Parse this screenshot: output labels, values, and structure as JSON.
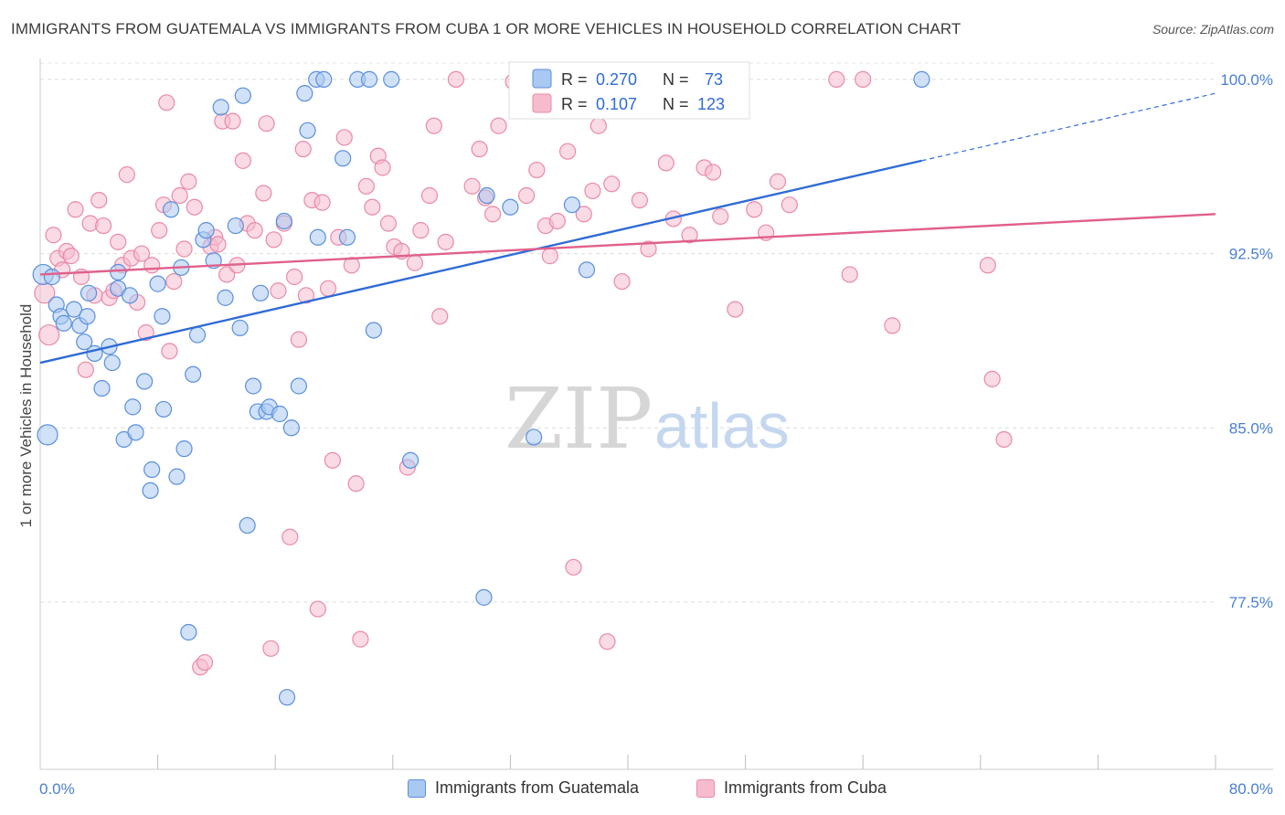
{
  "title": "IMMIGRANTS FROM GUATEMALA VS IMMIGRANTS FROM CUBA 1 OR MORE VEHICLES IN HOUSEHOLD CORRELATION CHART",
  "source": "Source: ZipAtlas.com",
  "watermark": {
    "zip": "ZIP",
    "atlas": "atlas"
  },
  "legend": {
    "r_label": "R =",
    "n_label": "N =",
    "guatemala": {
      "r": "0.270",
      "n": "73"
    },
    "cuba": {
      "r": "0.107",
      "n": "123"
    }
  },
  "bottom_legend": {
    "guatemala": "Immigrants from Guatemala",
    "cuba": "Immigrants from Cuba"
  },
  "colors": {
    "guatemala_fill": "#a9c8f2",
    "guatemala_stroke": "#5b8fdb",
    "guatemala_line": "#2f6bd6",
    "cuba_fill": "#f6bccd",
    "cuba_stroke": "#e98aa8",
    "cuba_line": "#e0608a",
    "tick_color": "#4a7fcf"
  },
  "chart_data": {
    "type": "scatter",
    "title": "IMMIGRANTS FROM GUATEMALA VS IMMIGRANTS FROM CUBA 1 OR MORE VEHICLES IN HOUSEHOLD CORRELATION CHART",
    "xlabel": "",
    "ylabel": "1 or more Vehicles in Household",
    "xlim": [
      0,
      80
    ],
    "ylim": [
      70.3,
      100.9
    ],
    "x_tick_labels": [
      "0.0%",
      "80.0%"
    ],
    "y_ticks": [
      77.5,
      85.0,
      92.5,
      100.0
    ],
    "y_tick_labels": [
      "77.5%",
      "85.0%",
      "92.5%",
      "100.0%"
    ],
    "grid": "horizontal dashed",
    "legend_position": "top-center",
    "series": [
      {
        "name": "Immigrants from Guatemala",
        "trend": {
          "x": [
            0,
            60.0
          ],
          "y": [
            87.8,
            96.5
          ],
          "dashed_to": [
            80,
            99.4
          ]
        },
        "points": [
          [
            0.2,
            91.6
          ],
          [
            0.5,
            84.7
          ],
          [
            0.8,
            91.5
          ],
          [
            1.1,
            90.3
          ],
          [
            1.4,
            89.8
          ],
          [
            1.6,
            89.5
          ],
          [
            2.3,
            90.1
          ],
          [
            2.7,
            89.4
          ],
          [
            3.0,
            88.7
          ],
          [
            3.2,
            89.8
          ],
          [
            3.7,
            88.2
          ],
          [
            4.2,
            86.7
          ],
          [
            4.7,
            88.5
          ],
          [
            4.9,
            87.8
          ],
          [
            5.3,
            91.0
          ],
          [
            5.3,
            91.7
          ],
          [
            5.7,
            84.5
          ],
          [
            6.1,
            90.7
          ],
          [
            6.3,
            85.9
          ],
          [
            6.5,
            84.8
          ],
          [
            7.1,
            87.0
          ],
          [
            7.5,
            82.3
          ],
          [
            7.6,
            83.2
          ],
          [
            8.0,
            91.2
          ],
          [
            8.3,
            89.8
          ],
          [
            8.4,
            85.8
          ],
          [
            8.9,
            94.4
          ],
          [
            9.3,
            82.9
          ],
          [
            9.6,
            91.9
          ],
          [
            9.8,
            84.1
          ],
          [
            10.1,
            76.2
          ],
          [
            10.4,
            87.3
          ],
          [
            10.7,
            89.0
          ],
          [
            11.1,
            93.1
          ],
          [
            11.3,
            93.5
          ],
          [
            11.8,
            92.2
          ],
          [
            12.3,
            98.8
          ],
          [
            12.6,
            90.6
          ],
          [
            13.3,
            93.7
          ],
          [
            13.6,
            89.3
          ],
          [
            13.8,
            99.3
          ],
          [
            14.1,
            80.8
          ],
          [
            14.5,
            86.8
          ],
          [
            14.8,
            85.7
          ],
          [
            15.0,
            90.8
          ],
          [
            15.4,
            85.7
          ],
          [
            15.6,
            85.9
          ],
          [
            16.3,
            85.6
          ],
          [
            16.6,
            93.9
          ],
          [
            16.8,
            73.4
          ],
          [
            17.1,
            85.0
          ],
          [
            17.6,
            86.8
          ],
          [
            18.0,
            99.4
          ],
          [
            18.2,
            97.8
          ],
          [
            18.8,
            100.0
          ],
          [
            18.9,
            93.2
          ],
          [
            19.3,
            100.0
          ],
          [
            20.6,
            96.6
          ],
          [
            20.9,
            93.2
          ],
          [
            21.6,
            100.0
          ],
          [
            22.4,
            100.0
          ],
          [
            22.7,
            89.2
          ],
          [
            23.9,
            100.0
          ],
          [
            25.2,
            83.6
          ],
          [
            30.2,
            77.7
          ],
          [
            30.4,
            95.0
          ],
          [
            32.0,
            94.5
          ],
          [
            33.6,
            84.6
          ],
          [
            36.2,
            94.6
          ],
          [
            37.2,
            91.8
          ],
          [
            41.3,
            100.0
          ],
          [
            60.0,
            100.0
          ],
          [
            3.3,
            90.8
          ]
        ]
      },
      {
        "name": "Immigrants from Cuba",
        "trend": {
          "x": [
            0,
            80.0
          ],
          "y": [
            91.6,
            94.2
          ]
        },
        "points": [
          [
            0.3,
            90.8
          ],
          [
            0.6,
            89.0
          ],
          [
            0.9,
            93.3
          ],
          [
            1.2,
            92.3
          ],
          [
            1.5,
            91.8
          ],
          [
            1.8,
            92.6
          ],
          [
            2.1,
            92.4
          ],
          [
            2.4,
            94.4
          ],
          [
            2.8,
            91.5
          ],
          [
            3.1,
            87.5
          ],
          [
            3.4,
            93.8
          ],
          [
            3.7,
            90.7
          ],
          [
            4.0,
            94.8
          ],
          [
            4.3,
            93.7
          ],
          [
            4.7,
            90.6
          ],
          [
            5.0,
            90.9
          ],
          [
            5.3,
            93.0
          ],
          [
            5.6,
            92.0
          ],
          [
            5.9,
            95.9
          ],
          [
            6.2,
            92.3
          ],
          [
            6.6,
            90.4
          ],
          [
            6.9,
            92.5
          ],
          [
            7.2,
            89.1
          ],
          [
            7.6,
            92.0
          ],
          [
            8.1,
            93.5
          ],
          [
            8.4,
            94.6
          ],
          [
            8.6,
            99.0
          ],
          [
            8.8,
            88.3
          ],
          [
            9.1,
            91.3
          ],
          [
            9.5,
            95.0
          ],
          [
            9.8,
            92.7
          ],
          [
            10.1,
            95.6
          ],
          [
            10.5,
            94.5
          ],
          [
            10.9,
            74.7
          ],
          [
            11.2,
            74.9
          ],
          [
            11.6,
            92.8
          ],
          [
            11.9,
            93.2
          ],
          [
            12.1,
            92.9
          ],
          [
            12.4,
            98.2
          ],
          [
            12.7,
            91.6
          ],
          [
            13.1,
            98.2
          ],
          [
            13.4,
            92.0
          ],
          [
            13.8,
            96.5
          ],
          [
            14.1,
            93.8
          ],
          [
            14.6,
            93.5
          ],
          [
            15.2,
            95.1
          ],
          [
            15.4,
            98.1
          ],
          [
            15.7,
            75.5
          ],
          [
            15.9,
            93.1
          ],
          [
            16.2,
            90.9
          ],
          [
            16.6,
            93.8
          ],
          [
            17.0,
            80.3
          ],
          [
            17.3,
            91.5
          ],
          [
            17.6,
            88.8
          ],
          [
            17.9,
            97.0
          ],
          [
            18.1,
            90.7
          ],
          [
            18.5,
            94.8
          ],
          [
            18.9,
            77.2
          ],
          [
            19.2,
            94.7
          ],
          [
            19.6,
            91.0
          ],
          [
            19.9,
            83.6
          ],
          [
            20.3,
            93.2
          ],
          [
            20.7,
            97.5
          ],
          [
            21.2,
            92.0
          ],
          [
            21.5,
            82.6
          ],
          [
            21.8,
            75.9
          ],
          [
            22.2,
            95.4
          ],
          [
            22.6,
            94.5
          ],
          [
            23.0,
            96.7
          ],
          [
            23.3,
            96.2
          ],
          [
            23.7,
            93.8
          ],
          [
            24.1,
            92.8
          ],
          [
            24.6,
            92.6
          ],
          [
            25.0,
            83.3
          ],
          [
            25.5,
            92.1
          ],
          [
            25.9,
            93.5
          ],
          [
            26.5,
            95.0
          ],
          [
            26.8,
            98.0
          ],
          [
            27.2,
            89.8
          ],
          [
            27.6,
            93.0
          ],
          [
            28.3,
            100.0
          ],
          [
            29.4,
            95.4
          ],
          [
            29.9,
            97.0
          ],
          [
            30.3,
            94.9
          ],
          [
            30.8,
            94.2
          ],
          [
            31.2,
            98.0
          ],
          [
            32.2,
            99.9
          ],
          [
            33.1,
            95.0
          ],
          [
            33.8,
            96.1
          ],
          [
            34.4,
            93.7
          ],
          [
            34.7,
            92.4
          ],
          [
            35.2,
            93.9
          ],
          [
            35.9,
            96.9
          ],
          [
            36.3,
            79.0
          ],
          [
            37.0,
            94.2
          ],
          [
            37.6,
            95.2
          ],
          [
            38.0,
            98.0
          ],
          [
            38.6,
            75.8
          ],
          [
            38.9,
            95.5
          ],
          [
            39.6,
            91.3
          ],
          [
            40.8,
            94.8
          ],
          [
            41.4,
            92.7
          ],
          [
            42.6,
            96.4
          ],
          [
            43.1,
            94.0
          ],
          [
            44.2,
            93.3
          ],
          [
            45.2,
            96.2
          ],
          [
            45.8,
            96.0
          ],
          [
            46.3,
            94.1
          ],
          [
            47.3,
            90.1
          ],
          [
            48.6,
            94.4
          ],
          [
            49.4,
            93.4
          ],
          [
            50.2,
            95.6
          ],
          [
            51.0,
            94.6
          ],
          [
            54.2,
            100.0
          ],
          [
            55.1,
            91.6
          ],
          [
            58.0,
            89.4
          ],
          [
            64.5,
            92.0
          ],
          [
            64.8,
            87.1
          ],
          [
            65.6,
            84.5
          ],
          [
            41.0,
            100.0
          ],
          [
            56.0,
            100.0
          ]
        ]
      }
    ]
  }
}
